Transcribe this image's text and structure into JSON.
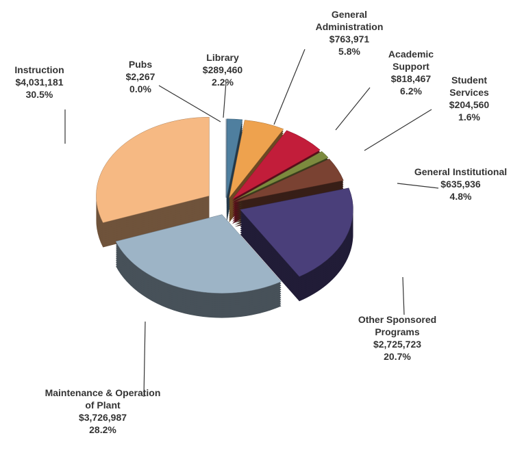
{
  "chart_data": {
    "type": "pie",
    "categories": [
      "Pubs",
      "Library",
      "General Administration",
      "Academic Support",
      "Student Services",
      "General Institutional",
      "Other Sponsored Programs",
      "Maintenance & Operation of Plant",
      "Instruction"
    ],
    "values": [
      2267,
      289460,
      763971,
      818467,
      204560,
      635936,
      2725723,
      3726987,
      4031181
    ],
    "value_labels": [
      "$2,267",
      "$289,460",
      "$763,971",
      "$818,467",
      "$204,560",
      "$635,936",
      "$2,725,723",
      "$3,726,987",
      "$4,031,181"
    ],
    "percents": [
      0.0,
      2.2,
      5.8,
      6.2,
      1.6,
      4.8,
      20.7,
      28.2,
      30.5
    ],
    "percent_labels": [
      "0.0%",
      "2.2%",
      "5.8%",
      "6.2%",
      "1.6%",
      "4.8%",
      "20.7%",
      "28.2%",
      "30.5%"
    ],
    "colors": [
      "#5b7a9a",
      "#4f7f9f",
      "#eea24e",
      "#c21d3a",
      "#7c8a3e",
      "#7a4232",
      "#4a3f7a",
      "#9db4c6",
      "#f6b983"
    ]
  }
}
